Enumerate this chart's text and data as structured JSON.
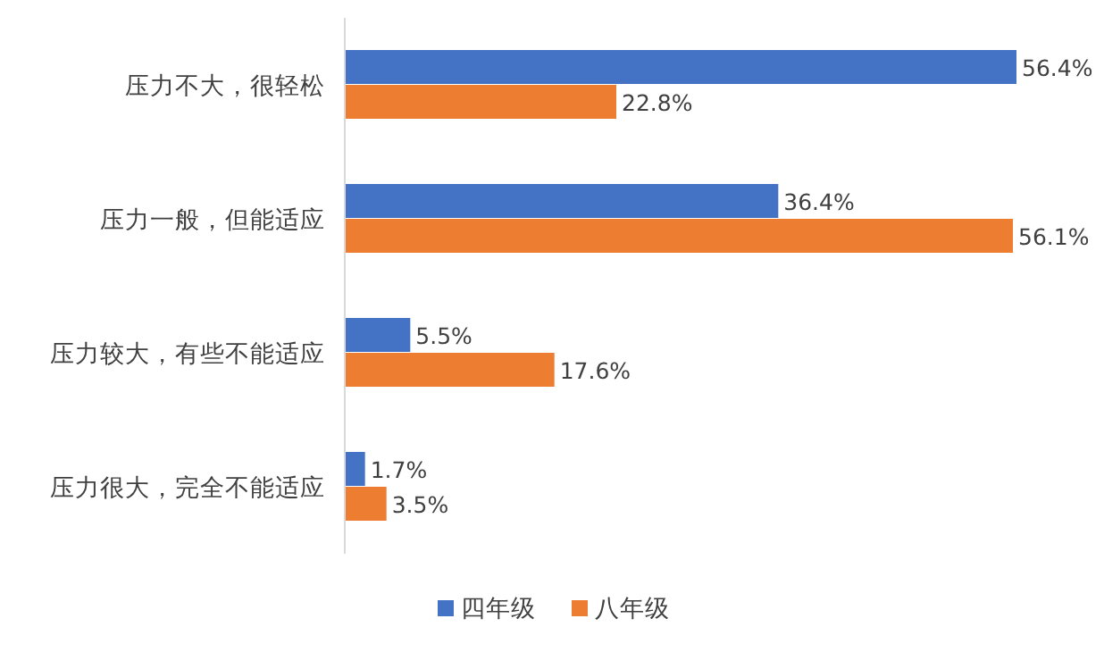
{
  "chart_data": {
    "type": "bar",
    "orientation": "horizontal",
    "categories": [
      "压力不大，很轻松",
      "压力一般，但能适应",
      "压力较大，有些不能适应",
      "压力很大，完全不能适应"
    ],
    "series": [
      {
        "name": "四年级",
        "color": "#4472c4",
        "values": [
          56.4,
          36.4,
          5.5,
          1.7
        ],
        "value_labels": [
          "56.4%",
          "36.4%",
          "5.5%",
          "1.7%"
        ]
      },
      {
        "name": "八年级",
        "color": "#ed7d31",
        "values": [
          22.8,
          56.1,
          17.6,
          3.5
        ],
        "value_labels": [
          "22.8%",
          "56.1%",
          "17.6%",
          "3.5%"
        ]
      }
    ],
    "legend": "bottom"
  }
}
